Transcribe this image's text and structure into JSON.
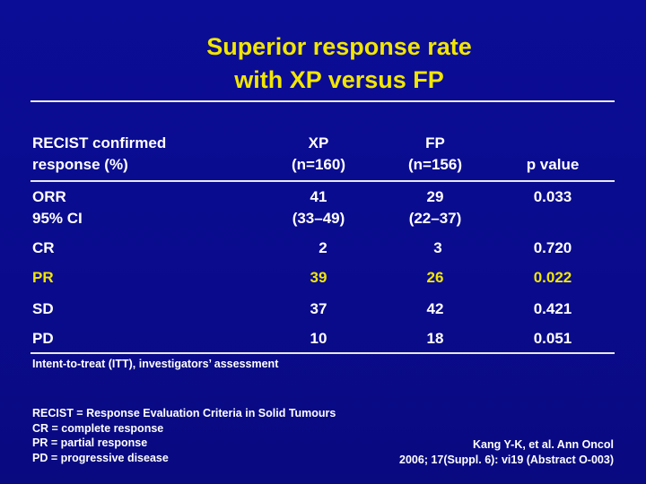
{
  "title": {
    "line1": "Superior response rate",
    "line2": "with XP versus FP"
  },
  "table": {
    "headers": {
      "col1_line1": "RECIST confirmed",
      "col1_line2": "response (%)",
      "xp_line1": "XP",
      "xp_line2": "(n=160)",
      "fp_line1": "FP",
      "fp_line2": "(n=156)",
      "p": "p value"
    },
    "orr": {
      "label_line1": "ORR",
      "label_line2": "95% CI",
      "xp_line1": "41",
      "xp_line2": "(33–49)",
      "fp_line1": "29",
      "fp_line2": "(22–37)",
      "p": "0.033"
    },
    "rows": [
      {
        "label": "CR",
        "xp": "2",
        "fp": "3",
        "p": "0.720"
      },
      {
        "label": "PR",
        "xp": "39",
        "fp": "26",
        "p": "0.022"
      },
      {
        "label": "SD",
        "xp": "37",
        "fp": "42",
        "p": "0.421"
      },
      {
        "label": "PD",
        "xp": "10",
        "fp": "18",
        "p": "0.051"
      }
    ]
  },
  "footnote": "Intent-to-treat (ITT), investigators’ assessment",
  "abbreviations": [
    "RECIST = Response Evaluation Criteria in Solid Tumours",
    "CR = complete response",
    "PR = partial response",
    "PD = progressive disease"
  ],
  "reference": {
    "line1": "Kang Y-K, et al. Ann Oncol",
    "line2": "2006; 17(Suppl. 6): vi19 (Abstract O-003)"
  },
  "colors": {
    "background": "#0a0b8c",
    "title": "#f2e600",
    "text": "#ffffff",
    "rule": "#e8e8e8"
  }
}
